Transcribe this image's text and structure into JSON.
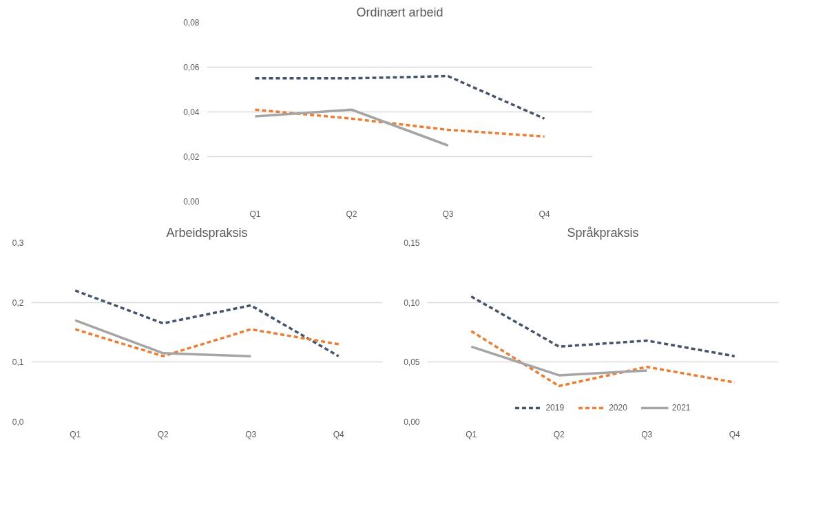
{
  "chart_data": [
    {
      "type": "line",
      "title": "Ordinært arbeid",
      "categories": [
        "Q1",
        "Q2",
        "Q3",
        "Q4"
      ],
      "ylim": [
        0,
        0.08
      ],
      "yticks": [
        {
          "value": 0,
          "label": "0,00"
        },
        {
          "value": 0.02,
          "label": "0,02"
        },
        {
          "value": 0.04,
          "label": "0,04"
        },
        {
          "value": 0.06,
          "label": "0,06"
        },
        {
          "value": 0.08,
          "label": "0,08"
        }
      ],
      "grid": "y",
      "series": [
        {
          "color": "#44546a",
          "line_style": "dashed",
          "values": [
            0.055,
            0.055,
            0.056,
            0.037
          ]
        },
        {
          "color": "#ed7d31",
          "line_style": "dashed",
          "values": [
            0.041,
            0.037,
            0.032,
            0.029
          ]
        },
        {
          "color": "#a5a5a5",
          "line_style": "solid",
          "values": [
            0.038,
            0.041,
            0.025,
            null
          ]
        }
      ]
    },
    {
      "type": "line",
      "title": "Arbeidspraksis",
      "categories": [
        "Q1",
        "Q2",
        "Q3",
        "Q4"
      ],
      "ylim": [
        0,
        0.3
      ],
      "yticks": [
        {
          "value": 0,
          "label": "0,0"
        },
        {
          "value": 0.1,
          "label": "0,1"
        },
        {
          "value": 0.2,
          "label": "0,2"
        },
        {
          "value": 0.3,
          "label": "0,3"
        }
      ],
      "grid": "y",
      "series": [
        {
          "color": "#44546a",
          "line_style": "dashed",
          "values": [
            0.22,
            0.165,
            0.195,
            0.11
          ]
        },
        {
          "color": "#ed7d31",
          "line_style": "dashed",
          "values": [
            0.155,
            0.11,
            0.155,
            0.13
          ]
        },
        {
          "color": "#a5a5a5",
          "line_style": "solid",
          "values": [
            0.17,
            0.115,
            0.11,
            null
          ]
        }
      ]
    },
    {
      "type": "line",
      "title": "Språkpraksis",
      "categories": [
        "Q1",
        "Q2",
        "Q3",
        "Q4"
      ],
      "ylim": [
        0,
        0.15
      ],
      "yticks": [
        {
          "value": 0,
          "label": "0,00"
        },
        {
          "value": 0.05,
          "label": "0,05"
        },
        {
          "value": 0.1,
          "label": "0,10"
        },
        {
          "value": 0.15,
          "label": "0,15"
        }
      ],
      "grid": "y",
      "legend": "bottom",
      "series": [
        {
          "name": "2019",
          "color": "#44546a",
          "line_style": "dashed",
          "values": [
            0.105,
            0.063,
            0.068,
            0.055
          ]
        },
        {
          "name": "2020",
          "color": "#ed7d31",
          "line_style": "dashed",
          "values": [
            0.076,
            0.03,
            0.046,
            0.033
          ]
        },
        {
          "name": "2021",
          "color": "#a5a5a5",
          "line_style": "solid",
          "values": [
            0.063,
            0.039,
            0.043,
            null
          ]
        }
      ]
    }
  ]
}
